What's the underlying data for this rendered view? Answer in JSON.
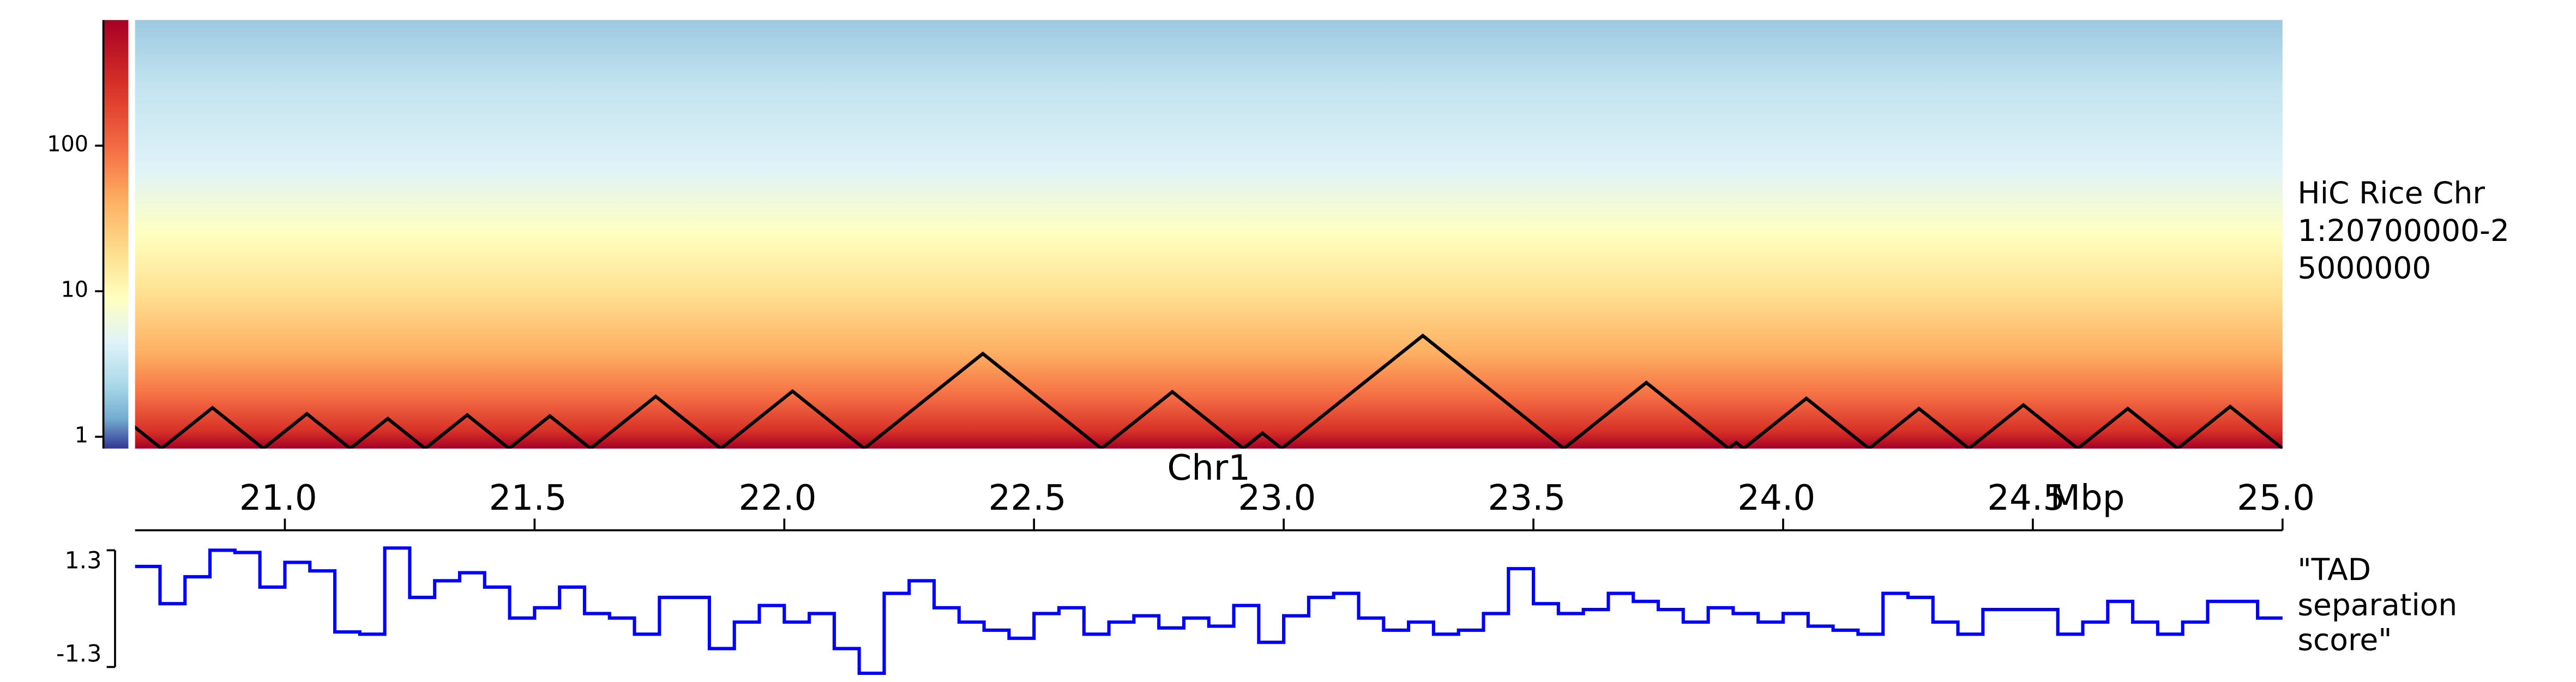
{
  "chart_data": [
    {
      "type": "heatmap",
      "title_lines": [
        "HiC Rice Chr",
        "1:20700000-2",
        "5000000"
      ],
      "xlim": [
        20.7,
        25.0
      ],
      "colorbar_scale": "log",
      "clim": [
        0.83,
        730
      ],
      "cticks": [
        1,
        10,
        100
      ],
      "tad_color": "#000000",
      "tad_boundaries": [
        20.647,
        20.753,
        20.957,
        21.131,
        21.281,
        21.449,
        21.612,
        21.873,
        22.16,
        22.635,
        22.919,
        22.996,
        23.561,
        23.891,
        23.921,
        24.172,
        24.372,
        24.59,
        24.79,
        25.0
      ]
    },
    {
      "type": "x-axis",
      "xlabel": "Chr1",
      "unit": "Mbp",
      "xlim": [
        20.7,
        25.0
      ],
      "xticks": [
        {
          "value": 21,
          "label": "21.0"
        },
        21.5,
        {
          "value": 22,
          "label": "22.0"
        },
        22.5,
        {
          "value": 23,
          "label": "23.0"
        },
        23.5,
        {
          "value": 24,
          "label": "24.0"
        },
        24.5,
        {
          "value": 25,
          "label": "25.0"
        }
      ]
    },
    {
      "type": "line",
      "step": true,
      "title_lines": [
        "\"TAD",
        "separation",
        "score\""
      ],
      "color": "#0000ff",
      "xlim": [
        20.7,
        25.0
      ],
      "ylim": [
        -1.3,
        1.3
      ],
      "yticks": [
        1.3,
        -1.3
      ],
      "x": [
        20.7,
        20.75,
        20.8,
        20.85,
        20.9,
        20.95,
        21.0,
        21.05,
        21.1,
        21.15,
        21.2,
        21.25,
        21.3,
        21.35,
        21.4,
        21.45,
        21.5,
        21.55,
        21.6,
        21.65,
        21.7,
        21.75,
        21.8,
        21.85,
        21.9,
        21.95,
        22.0,
        22.05,
        22.1,
        22.15,
        22.2,
        22.25,
        22.3,
        22.35,
        22.4,
        22.45,
        22.5,
        22.55,
        22.6,
        22.65,
        22.7,
        22.75,
        22.8,
        22.85,
        22.9,
        22.95,
        23.0,
        23.05,
        23.1,
        23.15,
        23.2,
        23.25,
        23.3,
        23.35,
        23.4,
        23.45,
        23.5,
        23.55,
        23.6,
        23.65,
        23.7,
        23.75,
        23.8,
        23.85,
        23.9,
        23.95,
        24.0,
        24.05,
        24.1,
        24.15,
        24.2,
        24.25,
        24.3,
        24.35,
        24.4,
        24.45,
        24.5,
        24.55,
        24.6,
        24.65,
        24.7,
        24.75,
        24.8,
        24.85,
        24.9,
        24.95
      ],
      "values": [
        0.94,
        0.11,
        0.71,
        1.3,
        1.25,
        0.48,
        1.03,
        0.84,
        -0.52,
        -0.57,
        1.35,
        0.25,
        0.62,
        0.8,
        0.48,
        -0.21,
        0.02,
        0.48,
        -0.11,
        -0.21,
        -0.57,
        0.25,
        0.25,
        -0.89,
        -0.3,
        0.07,
        -0.3,
        -0.11,
        -0.89,
        -1.44,
        0.34,
        0.62,
        0.02,
        -0.3,
        -0.48,
        -0.66,
        -0.11,
        0.02,
        -0.57,
        -0.3,
        -0.16,
        -0.43,
        -0.21,
        -0.39,
        0.07,
        -0.75,
        -0.16,
        0.25,
        0.34,
        -0.21,
        -0.48,
        -0.3,
        -0.57,
        -0.48,
        -0.11,
        0.89,
        0.11,
        -0.11,
        -0.02,
        0.34,
        0.16,
        -0.02,
        -0.3,
        0.02,
        -0.11,
        -0.3,
        -0.11,
        -0.39,
        -0.48,
        -0.57,
        0.34,
        0.25,
        -0.3,
        -0.57,
        -0.02,
        -0.02,
        -0.02,
        -0.57,
        -0.3,
        0.16,
        -0.3,
        -0.57,
        -0.3,
        0.16,
        0.16,
        -0.21
      ]
    }
  ]
}
